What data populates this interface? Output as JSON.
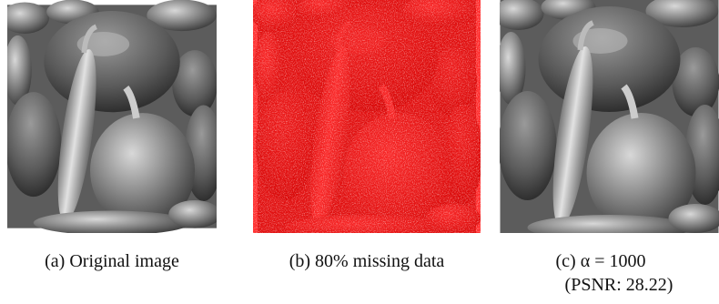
{
  "figure": {
    "panels": [
      {
        "caption": "(a) Original image"
      },
      {
        "caption": "(b) 80% missing data"
      },
      {
        "caption": "(c) α = 1000",
        "caption_line2": "(PSNR: 28.22)"
      }
    ]
  }
}
